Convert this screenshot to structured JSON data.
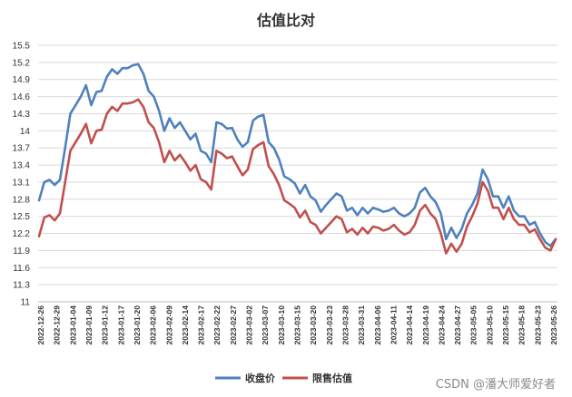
{
  "chart_data": {
    "type": "line",
    "title": "估值比对",
    "ylim": [
      11,
      15.5
    ],
    "yticks": [
      "15.5",
      "15.2",
      "14.9",
      "14.6",
      "14.3",
      "14",
      "13.7",
      "13.4",
      "13.1",
      "12.8",
      "12.5",
      "12.2",
      "11.9",
      "11.6",
      "11.3",
      "11"
    ],
    "xtick_labels": [
      "2022-12-26",
      "2022-12-29",
      "2023-01-04",
      "2023-01-09",
      "2023-01-12",
      "2023-01-17",
      "2023-01-20",
      "2023-02-06",
      "2023-02-09",
      "2023-02-14",
      "2023-02-17",
      "2023-02-22",
      "2023-02-27",
      "2023-03-02",
      "2023-03-07",
      "2023-03-10",
      "2023-03-15",
      "2023-03-20",
      "2023-03-23",
      "2023-03-28",
      "2023-03-31",
      "2023-04-06",
      "2023-04-11",
      "2023-04-14",
      "2023-04-19",
      "2023-04-24",
      "2023-04-27",
      "2023-05-05",
      "2023-05-10",
      "2023-05-15",
      "2023-05-18",
      "2023-05-23",
      "2023-05-26"
    ],
    "grid": true,
    "legend": "bottom-center",
    "series": [
      {
        "name": "收盘价",
        "color": "#4f81bd",
        "values": [
          12.78,
          13.1,
          13.14,
          13.05,
          13.14,
          13.7,
          14.3,
          14.45,
          14.6,
          14.8,
          14.45,
          14.68,
          14.7,
          14.95,
          15.08,
          15.0,
          15.1,
          15.1,
          15.15,
          15.17,
          15.0,
          14.7,
          14.6,
          14.35,
          14.0,
          14.22,
          14.05,
          14.15,
          14.0,
          13.85,
          13.95,
          13.65,
          13.6,
          13.45,
          14.15,
          14.12,
          14.04,
          14.05,
          13.85,
          13.72,
          13.8,
          14.18,
          14.25,
          14.28,
          13.8,
          13.7,
          13.5,
          13.2,
          13.15,
          13.08,
          12.9,
          13.05,
          12.85,
          12.78,
          12.58,
          12.7,
          12.8,
          12.9,
          12.85,
          12.6,
          12.65,
          12.52,
          12.65,
          12.55,
          12.65,
          12.62,
          12.58,
          12.6,
          12.65,
          12.55,
          12.5,
          12.55,
          12.65,
          12.92,
          13.0,
          12.85,
          12.75,
          12.55,
          12.1,
          12.3,
          12.12,
          12.28,
          12.55,
          12.7,
          12.9,
          13.32,
          13.15,
          12.85,
          12.85,
          12.65,
          12.85,
          12.6,
          12.5,
          12.5,
          12.35,
          12.4,
          12.2,
          12.05,
          11.98,
          12.1
        ]
      },
      {
        "name": "限售估值",
        "color": "#c0504d",
        "values": [
          12.15,
          12.48,
          12.52,
          12.43,
          12.55,
          13.1,
          13.65,
          13.8,
          13.95,
          14.12,
          13.78,
          14.0,
          14.02,
          14.3,
          14.42,
          14.35,
          14.48,
          14.48,
          14.5,
          14.55,
          14.42,
          14.15,
          14.05,
          13.8,
          13.45,
          13.65,
          13.48,
          13.58,
          13.45,
          13.3,
          13.4,
          13.15,
          13.1,
          12.97,
          13.65,
          13.6,
          13.52,
          13.55,
          13.38,
          13.22,
          13.32,
          13.68,
          13.75,
          13.8,
          13.38,
          13.24,
          13.05,
          12.78,
          12.72,
          12.65,
          12.48,
          12.6,
          12.4,
          12.35,
          12.2,
          12.3,
          12.4,
          12.5,
          12.45,
          12.22,
          12.28,
          12.18,
          12.3,
          12.2,
          12.32,
          12.3,
          12.25,
          12.28,
          12.35,
          12.25,
          12.18,
          12.22,
          12.35,
          12.6,
          12.7,
          12.55,
          12.45,
          12.2,
          11.85,
          12.02,
          11.88,
          12.02,
          12.32,
          12.5,
          12.72,
          13.1,
          12.95,
          12.65,
          12.65,
          12.45,
          12.65,
          12.45,
          12.35,
          12.35,
          12.22,
          12.27,
          12.1,
          11.95,
          11.9,
          12.1
        ]
      }
    ]
  },
  "watermark": "CSDN @潘大师爱好者"
}
